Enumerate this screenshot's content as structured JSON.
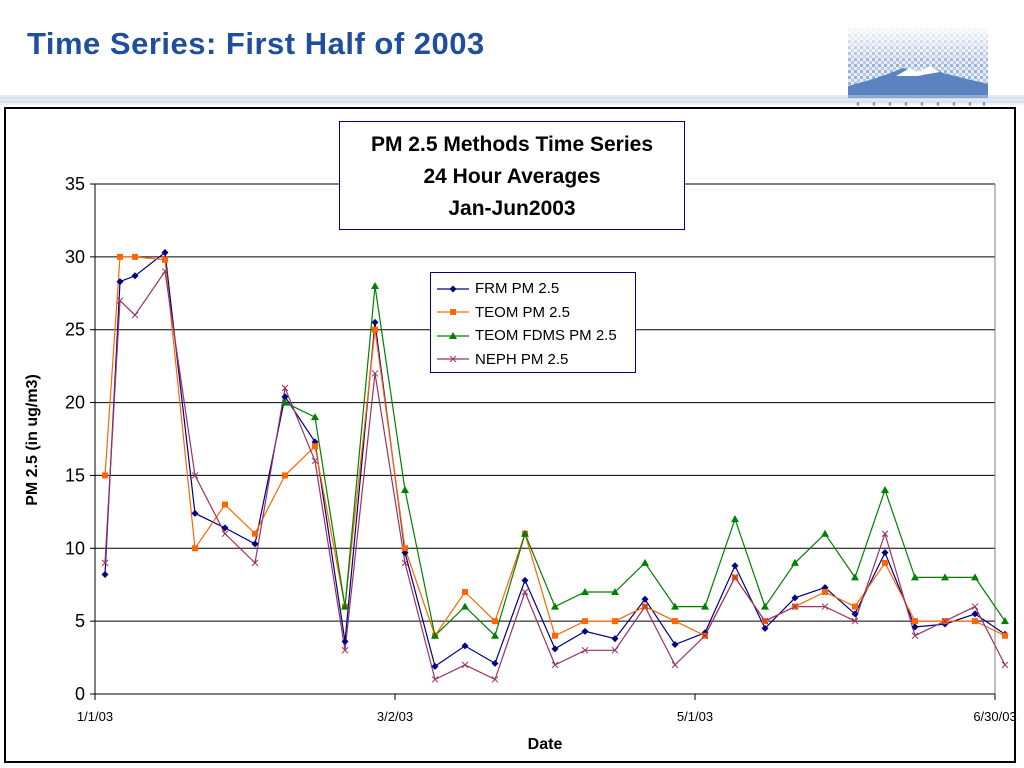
{
  "slide": {
    "title": "Time Series: First Half of 2003"
  },
  "colors": {
    "title": "#1f4e9c",
    "frm": "#000080",
    "teom": "#ff6600",
    "fdms": "#008000",
    "neph": "#993366"
  },
  "chart_data": {
    "type": "line",
    "title": "PM 2.5 Methods Time Series",
    "subtitle": "24 Hour Averages",
    "subtitle2": "Jan-Jun2003",
    "xlabel": "Date",
    "ylabel": "PM 2.5 (in ug/m3)",
    "ylim": [
      0,
      35
    ],
    "yticks": [
      0,
      5,
      10,
      15,
      20,
      25,
      30,
      35
    ],
    "xlim": [
      0,
      180
    ],
    "xticks": [
      {
        "value": 0,
        "label": "1/1/03"
      },
      {
        "value": 60,
        "label": "3/2/03"
      },
      {
        "value": 120,
        "label": "5/1/03"
      },
      {
        "value": 180,
        "label": "6/30/03"
      }
    ],
    "grid": true,
    "legend_position": "center-right",
    "x": [
      2,
      5,
      8,
      14,
      20,
      26,
      32,
      38,
      44,
      50,
      56,
      62,
      68,
      74,
      80,
      86,
      92,
      98,
      104,
      110,
      116,
      122,
      128,
      134,
      140,
      146,
      152,
      158,
      164,
      170,
      176,
      182
    ],
    "series": [
      {
        "name": "FRM PM 2.5",
        "marker": "diamond",
        "color": "#000080",
        "values": [
          8.2,
          28.3,
          28.7,
          30.3,
          12.4,
          11.4,
          10.3,
          20.4,
          17.3,
          3.6,
          25.5,
          9.7,
          1.9,
          3.3,
          2.1,
          7.8,
          3.1,
          4.3,
          3.8,
          6.5,
          3.4,
          4.2,
          8.8,
          4.5,
          6.6,
          7.3,
          5.5,
          9.7,
          4.6,
          4.8,
          5.5,
          4.1
        ]
      },
      {
        "name": "TEOM PM 2.5",
        "marker": "square",
        "color": "#ff6600",
        "values": [
          15.0,
          30.0,
          30.0,
          29.8,
          10.0,
          13.0,
          11.0,
          15.0,
          17.0,
          6.0,
          25.0,
          10.0,
          4.0,
          7.0,
          5.0,
          11.0,
          4.0,
          5.0,
          5.0,
          6.0,
          5.0,
          4.0,
          8.0,
          5.0,
          6.0,
          7.0,
          6.0,
          9.0,
          5.0,
          5.0,
          5.0,
          4.0
        ]
      },
      {
        "name": "TEOM FDMS PM 2.5",
        "marker": "triangle",
        "color": "#008000",
        "values": [
          null,
          null,
          null,
          null,
          null,
          null,
          null,
          20.0,
          19.0,
          6.0,
          28.0,
          14.0,
          4.0,
          6.0,
          4.0,
          11.0,
          6.0,
          7.0,
          7.0,
          9.0,
          6.0,
          6.0,
          12.0,
          6.0,
          9.0,
          11.0,
          8.0,
          14.0,
          8.0,
          8.0,
          8.0,
          5.0
        ]
      },
      {
        "name": "NEPH PM 2.5",
        "marker": "x",
        "color": "#993366",
        "values": [
          9.0,
          27.0,
          26.0,
          29.0,
          15.0,
          11.0,
          9.0,
          21.0,
          16.0,
          3.0,
          22.0,
          9.0,
          1.0,
          2.0,
          1.0,
          7.0,
          2.0,
          3.0,
          3.0,
          6.0,
          2.0,
          4.0,
          8.0,
          5.0,
          6.0,
          6.0,
          5.0,
          11.0,
          4.0,
          5.0,
          6.0,
          2.0
        ]
      }
    ]
  }
}
